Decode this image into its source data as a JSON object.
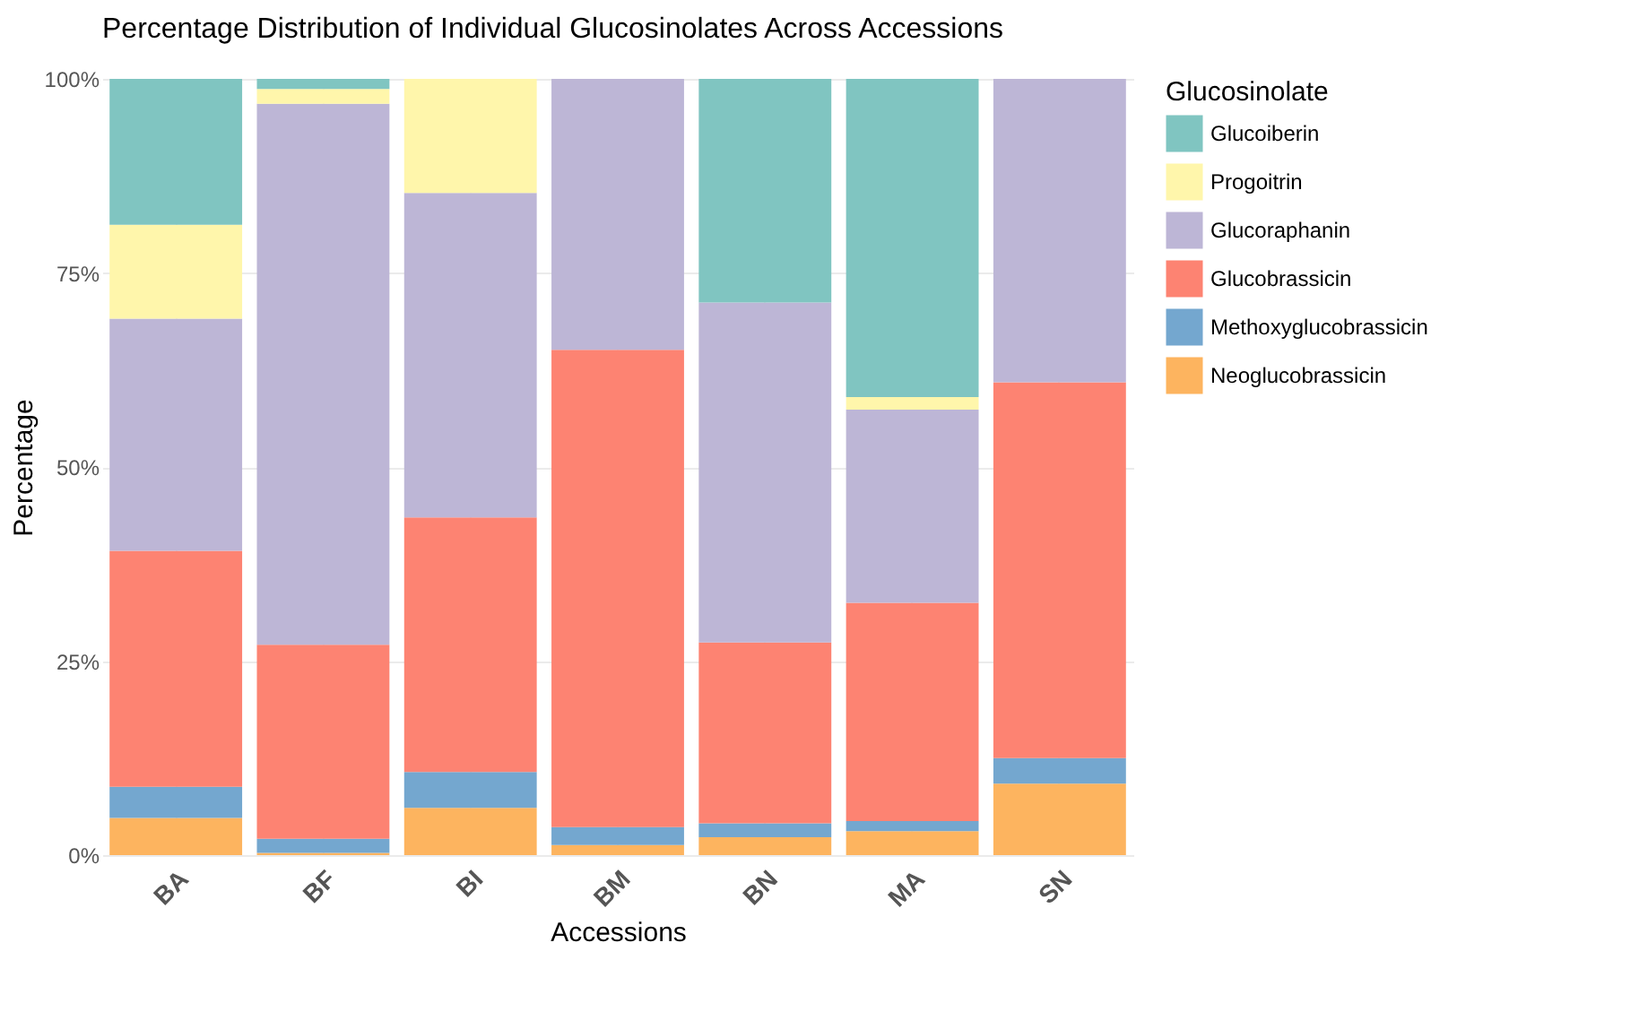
{
  "chart_data": {
    "type": "bar",
    "title": "Percentage Distribution of Individual Glucosinolates Across Accessions",
    "xlabel": "Accessions",
    "ylabel": "Percentage",
    "legend_title": "Glucosinolate",
    "categories": [
      "BA",
      "BF",
      "BI",
      "BM",
      "BN",
      "MA",
      "SN"
    ],
    "stacked": true,
    "ylim": [
      0,
      100
    ],
    "yticks": [
      {
        "value": 0,
        "label": "0%"
      },
      {
        "value": 25,
        "label": "25%"
      },
      {
        "value": 50,
        "label": "50%"
      },
      {
        "value": 75,
        "label": "75%"
      },
      {
        "value": 100,
        "label": "100%"
      }
    ],
    "grid": true,
    "legend": "right",
    "series": [
      {
        "name": "Neoglucobrassicin",
        "color": "#fdb45f",
        "values": [
          4.8,
          0.3,
          6.1,
          1.3,
          2.3,
          3.1,
          9.2
        ]
      },
      {
        "name": "Methoxyglucobrassicin",
        "color": "#74a7cf",
        "values": [
          4.0,
          1.8,
          4.6,
          2.3,
          1.8,
          1.3,
          3.3
        ]
      },
      {
        "name": "Glucobrassicin",
        "color": "#fd8372",
        "values": [
          30.4,
          25.0,
          32.8,
          61.5,
          23.3,
          28.1,
          48.4
        ]
      },
      {
        "name": "Glucoraphanin",
        "color": "#bdb6d6",
        "values": [
          29.9,
          69.7,
          41.8,
          34.9,
          43.8,
          24.9,
          39.1
        ]
      },
      {
        "name": "Progoitrin",
        "color": "#fff6ab",
        "values": [
          12.1,
          1.9,
          14.7,
          0,
          0,
          1.6,
          0
        ]
      },
      {
        "name": "Glucoiberin",
        "color": "#80c5c1",
        "values": [
          18.8,
          1.3,
          0,
          0,
          28.8,
          41.0,
          0
        ]
      }
    ]
  }
}
